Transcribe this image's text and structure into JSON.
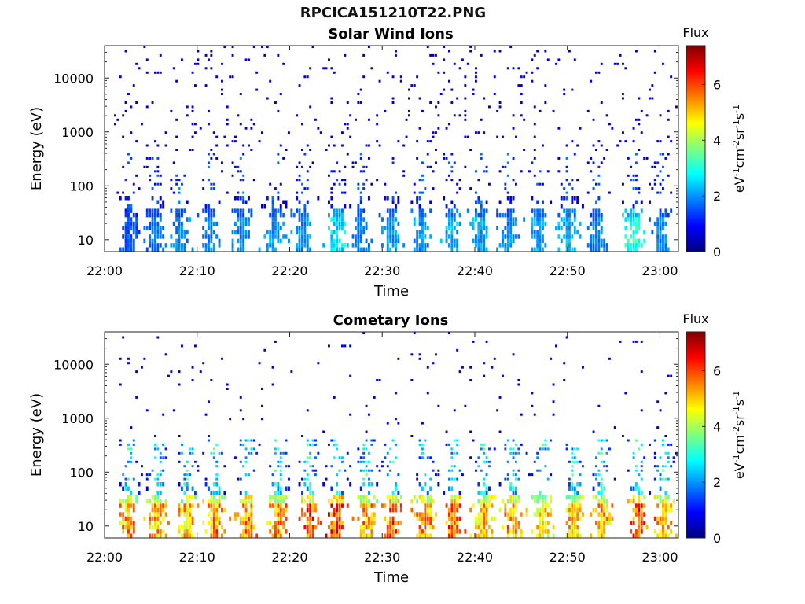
{
  "figure": {
    "title": "RPCICA151210T22.PNG"
  },
  "colors": {
    "colormap": [
      "#00007f",
      "#0000ff",
      "#007fff",
      "#00ffff",
      "#7fff7f",
      "#ffff00",
      "#ff7f00",
      "#ff0000",
      "#7f0000"
    ]
  },
  "chart_data": [
    {
      "type": "heatmap",
      "title": "Solar Wind Ions",
      "xlabel": "Time",
      "ylabel": "Energy (eV)",
      "x_ticks": [
        "22:00",
        "22:10",
        "22:20",
        "22:30",
        "22:40",
        "22:50",
        "23:00"
      ],
      "xlim": [
        "22:00",
        "23:02"
      ],
      "y_scale": "log",
      "ylim": [
        6,
        40000
      ],
      "y_ticks": [
        10,
        100,
        1000,
        10000
      ],
      "y_tick_labels": [
        "10",
        "100",
        "1000",
        "10000"
      ],
      "colorbar": {
        "title": "Flux",
        "label": "eV-1cm-2sr-1s-1",
        "range": [
          0,
          7.4
        ],
        "ticks": [
          0,
          2,
          4,
          6
        ],
        "tick_labels": [
          "0",
          "2",
          "4",
          "6"
        ]
      },
      "low_energy_bursts": [
        {
          "time_min": 2.5,
          "flux": 1.8
        },
        {
          "time_min": 5.3,
          "flux": 2.0
        },
        {
          "time_min": 8.0,
          "flux": 2.2
        },
        {
          "time_min": 11.3,
          "flux": 2.2
        },
        {
          "time_min": 14.7,
          "flux": 2.2
        },
        {
          "time_min": 18.2,
          "flux": 2.4
        },
        {
          "time_min": 21.3,
          "flux": 2.3
        },
        {
          "time_min": 25.0,
          "flux": 3.0
        },
        {
          "time_min": 27.5,
          "flux": 2.2
        },
        {
          "time_min": 30.8,
          "flux": 2.4
        },
        {
          "time_min": 34.2,
          "flux": 2.4
        },
        {
          "time_min": 37.4,
          "flux": 2.6
        },
        {
          "time_min": 40.5,
          "flux": 2.5
        },
        {
          "time_min": 43.5,
          "flux": 2.3
        },
        {
          "time_min": 46.7,
          "flux": 2.5
        },
        {
          "time_min": 50.0,
          "flux": 2.6
        },
        {
          "time_min": 53.0,
          "flux": 2.2
        },
        {
          "time_min": 57.0,
          "flux": 3.5
        },
        {
          "time_min": 60.0,
          "flux": 2.2
        }
      ],
      "background_flux": 0.8
    },
    {
      "type": "heatmap",
      "title": "Cometary Ions",
      "xlabel": "Time",
      "ylabel": "Energy (eV)",
      "x_ticks": [
        "22:00",
        "22:10",
        "22:20",
        "22:30",
        "22:40",
        "22:50",
        "23:00"
      ],
      "xlim": [
        "22:00",
        "23:02"
      ],
      "y_scale": "log",
      "ylim": [
        6,
        40000
      ],
      "y_ticks": [
        10,
        100,
        1000,
        10000
      ],
      "y_tick_labels": [
        "10",
        "100",
        "1000",
        "10000"
      ],
      "colorbar": {
        "title": "Flux",
        "label": "eV-1cm-2sr-1s-1",
        "range": [
          0,
          7.4
        ],
        "ticks": [
          0,
          2,
          4,
          6
        ],
        "tick_labels": [
          "0",
          "2",
          "4",
          "6"
        ]
      },
      "low_energy_bursts": [
        {
          "time_min": 2.5,
          "flux": 6.2
        },
        {
          "time_min": 5.6,
          "flux": 6.1
        },
        {
          "time_min": 8.8,
          "flux": 6.0
        },
        {
          "time_min": 11.8,
          "flux": 6.4
        },
        {
          "time_min": 15.3,
          "flux": 6.5
        },
        {
          "time_min": 18.6,
          "flux": 6.3
        },
        {
          "time_min": 22.0,
          "flux": 6.8
        },
        {
          "time_min": 25.0,
          "flux": 7.0
        },
        {
          "time_min": 28.2,
          "flux": 6.2
        },
        {
          "time_min": 31.0,
          "flux": 6.8
        },
        {
          "time_min": 34.5,
          "flux": 6.2
        },
        {
          "time_min": 37.6,
          "flux": 6.8
        },
        {
          "time_min": 40.8,
          "flux": 6.0
        },
        {
          "time_min": 44.0,
          "flux": 6.2
        },
        {
          "time_min": 47.2,
          "flux": 5.6
        },
        {
          "time_min": 50.6,
          "flux": 5.8
        },
        {
          "time_min": 53.6,
          "flux": 6.0
        },
        {
          "time_min": 57.5,
          "flux": 6.9
        },
        {
          "time_min": 60.3,
          "flux": 6.3
        }
      ],
      "background_flux": 0.8
    }
  ]
}
